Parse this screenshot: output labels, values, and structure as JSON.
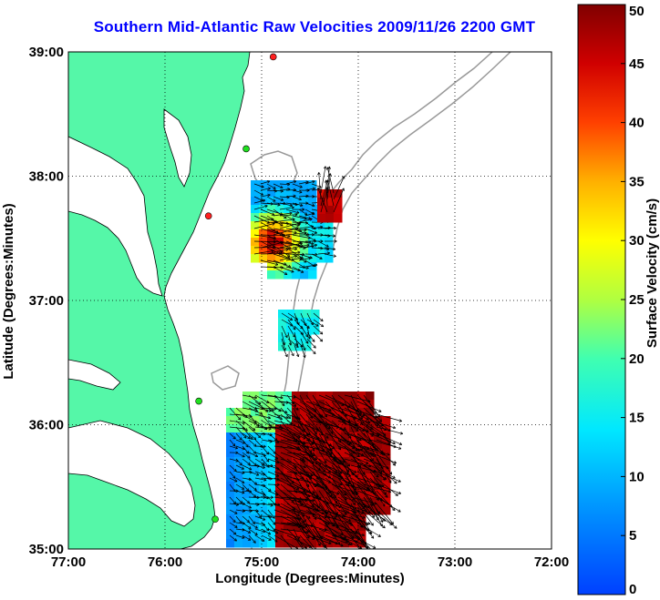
{
  "title": "Southern Mid-Atlantic Raw Velocities 2009/11/26 2200 GMT",
  "map": {
    "xlabel": "Longitude (Degrees:Minutes)",
    "ylabel": "Latitude (Degrees:Minutes)",
    "x_ticks": [
      "77:00",
      "76:00",
      "75:00",
      "74:00",
      "73:00",
      "72:00"
    ],
    "y_ticks": [
      "39:00",
      "38:00",
      "37:00",
      "36:00",
      "35:00"
    ],
    "lon_range": [
      -77,
      -72
    ],
    "lat_range": [
      35,
      39
    ],
    "land_color": "#55f7a8",
    "coast_color": "#000000",
    "bathymetry_color": "#999999",
    "grid": "dotted"
  },
  "colorbar": {
    "label": "Surface Velocity (cm/s)",
    "ticks": [
      "50",
      "45",
      "40",
      "35",
      "30",
      "25",
      "20",
      "15",
      "10",
      "5",
      "0"
    ],
    "range": [
      0,
      50
    ],
    "colormap": "jet"
  },
  "stations": [
    {
      "lon": -74.88,
      "lat": 38.96,
      "color": "#ff2020"
    },
    {
      "lon": -75.16,
      "lat": 38.22,
      "color": "#20e020"
    },
    {
      "lon": -75.55,
      "lat": 37.68,
      "color": "#ff2020"
    },
    {
      "lon": -75.65,
      "lat": 36.19,
      "color": "#20e020"
    },
    {
      "lon": -75.48,
      "lat": 35.24,
      "color": "#20e020"
    }
  ]
}
